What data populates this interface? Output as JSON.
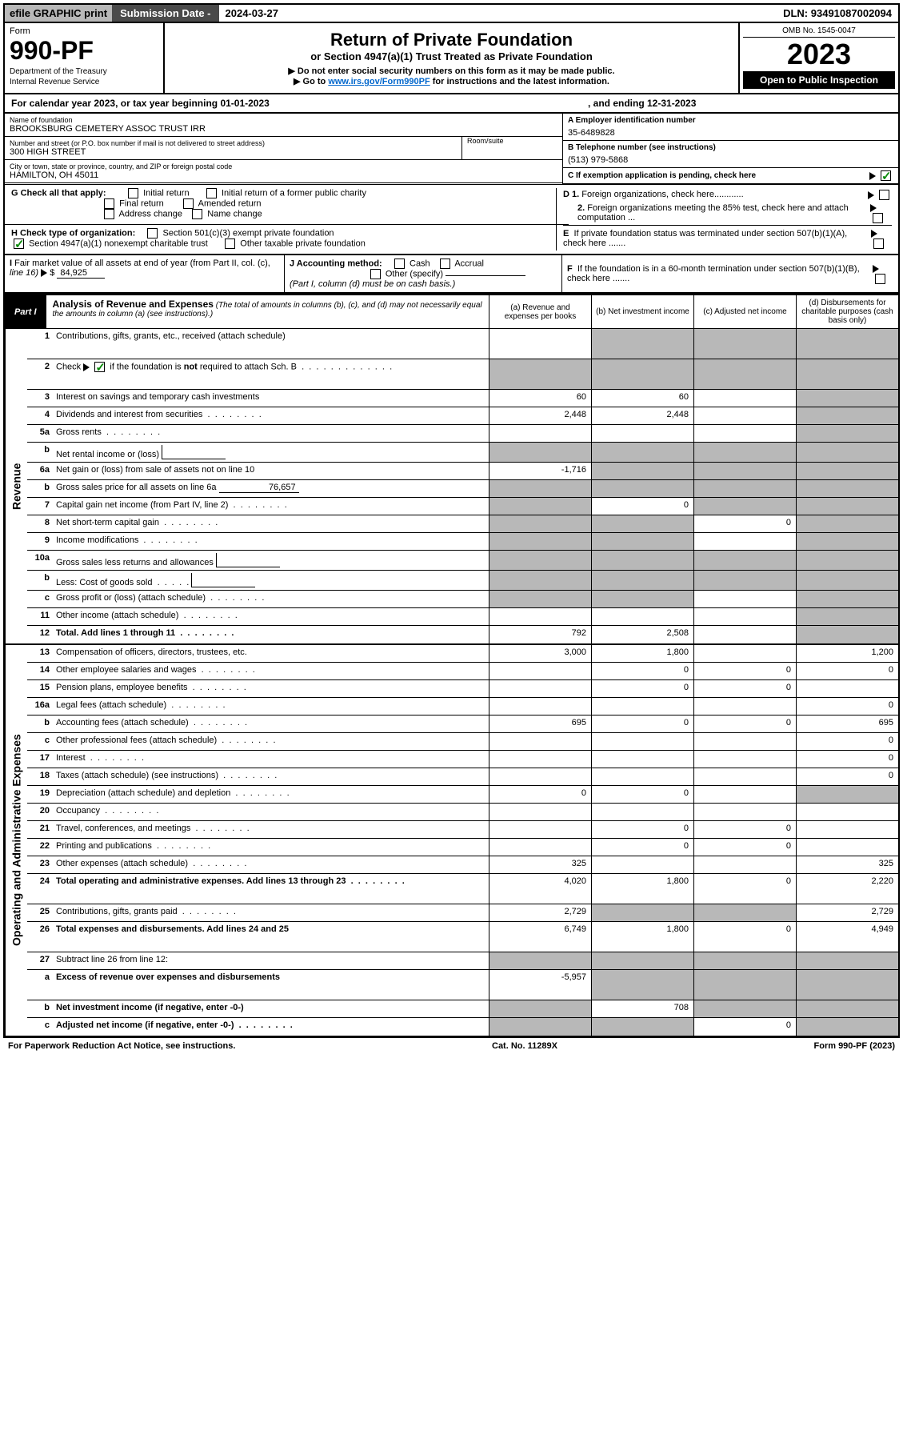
{
  "efile": {
    "left": "efile GRAPHIC print",
    "mid_label": "Submission Date -",
    "date": "2024-03-27",
    "dln_label": "DLN:",
    "dln": "93491087002094"
  },
  "header": {
    "form_label": "Form",
    "form_num": "990-PF",
    "dept1": "Department of the Treasury",
    "dept2": "Internal Revenue Service",
    "title1": "Return of Private Foundation",
    "title2": "or Section 4947(a)(1) Trust Treated as Private Foundation",
    "title3a": "▶ Do not enter social security numbers on this form as it may be made public.",
    "title3b_pre": "▶ Go to ",
    "title3b_link": "www.irs.gov/Form990PF",
    "title3b_post": " for instructions and the latest information.",
    "omb": "OMB No. 1545-0047",
    "year": "2023",
    "open": "Open to Public Inspection"
  },
  "cal": {
    "left": "For calendar year 2023, or tax year beginning 01-01-2023",
    "right": ", and ending 12-31-2023"
  },
  "info": {
    "name_label": "Name of foundation",
    "name": "BROOKSBURG CEMETERY ASSOC TRUST IRR",
    "addr_label": "Number and street (or P.O. box number if mail is not delivered to street address)",
    "addr": "300 HIGH STREET",
    "room_label": "Room/suite",
    "room": "",
    "city_label": "City or town, state or province, country, and ZIP or foreign postal code",
    "city": "HAMILTON, OH  45011",
    "a_label": "A Employer identification number",
    "a_val": "35-6489828",
    "b_label": "B Telephone number (see instructions)",
    "b_val": "(513) 979-5868",
    "c_label": "C If exemption application is pending, check here"
  },
  "checks": {
    "g_label": "G Check all that apply:",
    "g_opts": [
      "Initial return",
      "Initial return of a former public charity",
      "Final return",
      "Amended return",
      "Address change",
      "Name change"
    ],
    "h_label": "H Check type of organization:",
    "h_opt1": "Section 501(c)(3) exempt private foundation",
    "h_opt2": "Section 4947(a)(1) nonexempt charitable trust",
    "h_opt3": "Other taxable private foundation",
    "i_label_pre": "I Fair market value of all assets at end of year (from Part II, col. (c), line 16) ",
    "i_tri": "▶",
    "i_dollar": "$",
    "i_val": "84,925",
    "j_label": "J Accounting method:",
    "j_opts": [
      "Cash",
      "Accrual",
      "Other (specify)"
    ],
    "j_note": "(Part I, column (d) must be on cash basis.)",
    "d1": "D 1. Foreign organizations, check here............",
    "d2": "2. Foreign organizations meeting the 85% test, check here and attach computation ...",
    "e": "E  If private foundation status was terminated under section 507(b)(1)(A), check here .......",
    "f": "F  If the foundation is in a 60-month termination under section 507(b)(1)(B), check here .......",
    "arrow": "▶"
  },
  "part1": {
    "label": "Part I",
    "title_bold": "Analysis of Revenue and Expenses",
    "title_italic": " (The total of amounts in columns (b), (c), and (d) may not necessarily equal the amounts in column (a) (see instructions).)",
    "col_a": "(a)  Revenue and expenses per books",
    "col_b": "(b)  Net investment income",
    "col_c": "(c)  Adjusted net income",
    "col_d": "(d)  Disbursements for charitable purposes (cash basis only)"
  },
  "side_labels": {
    "revenue": "Revenue",
    "expenses": "Operating and Administrative Expenses"
  },
  "rows": [
    {
      "n": "1",
      "desc": "Contributions, gifts, grants, etc., received (attach schedule)",
      "a": "",
      "b": "shaded",
      "c": "shaded",
      "d": "shaded",
      "dh": true
    },
    {
      "n": "2",
      "desc": "Check ▶ [✓] if the foundation is not required to attach Sch. B",
      "a": "shaded",
      "b": "shaded",
      "c": "shaded",
      "d": "shaded",
      "dh": true,
      "checked": true,
      "dots": true
    },
    {
      "n": "3",
      "desc": "Interest on savings and temporary cash investments",
      "a": "60",
      "b": "60",
      "c": "",
      "d": "shaded"
    },
    {
      "n": "4",
      "desc": "Dividends and interest from securities",
      "a": "2,448",
      "b": "2,448",
      "c": "",
      "d": "shaded",
      "dots": true
    },
    {
      "n": "5a",
      "desc": "Gross rents",
      "a": "",
      "b": "",
      "c": "",
      "d": "shaded",
      "dots": true
    },
    {
      "n": "b",
      "desc": "Net rental income or (loss)",
      "a": "shaded",
      "b": "shaded",
      "c": "shaded",
      "d": "shaded",
      "box": true
    },
    {
      "n": "6a",
      "desc": "Net gain or (loss) from sale of assets not on line 10",
      "a": "-1,716",
      "b": "shaded",
      "c": "shaded",
      "d": "shaded"
    },
    {
      "n": "b",
      "desc": "Gross sales price for all assets on line 6a",
      "a": "shaded",
      "b": "shaded",
      "c": "shaded",
      "d": "shaded",
      "inline_val": "76,657"
    },
    {
      "n": "7",
      "desc": "Capital gain net income (from Part IV, line 2)",
      "a": "shaded",
      "b": "0",
      "c": "shaded",
      "d": "shaded",
      "dots": true
    },
    {
      "n": "8",
      "desc": "Net short-term capital gain",
      "a": "shaded",
      "b": "shaded",
      "c": "0",
      "d": "shaded",
      "dots": true
    },
    {
      "n": "9",
      "desc": "Income modifications",
      "a": "shaded",
      "b": "shaded",
      "c": "",
      "d": "shaded",
      "dots": true
    },
    {
      "n": "10a",
      "desc": "Gross sales less returns and allowances",
      "a": "shaded",
      "b": "shaded",
      "c": "shaded",
      "d": "shaded",
      "box": true
    },
    {
      "n": "b",
      "desc": "Less: Cost of goods sold",
      "a": "shaded",
      "b": "shaded",
      "c": "shaded",
      "d": "shaded",
      "box": true,
      "dots": true
    },
    {
      "n": "c",
      "desc": "Gross profit or (loss) (attach schedule)",
      "a": "shaded",
      "b": "shaded",
      "c": "",
      "d": "shaded",
      "dots": true
    },
    {
      "n": "11",
      "desc": "Other income (attach schedule)",
      "a": "",
      "b": "",
      "c": "",
      "d": "shaded",
      "dots": true
    },
    {
      "n": "12",
      "desc": "Total. Add lines 1 through 11",
      "a": "792",
      "b": "2,508",
      "c": "",
      "d": "shaded",
      "bold": true,
      "dots": true
    }
  ],
  "exp_rows": [
    {
      "n": "13",
      "desc": "Compensation of officers, directors, trustees, etc.",
      "a": "3,000",
      "b": "1,800",
      "c": "",
      "d": "1,200"
    },
    {
      "n": "14",
      "desc": "Other employee salaries and wages",
      "a": "",
      "b": "0",
      "c": "0",
      "d": "0",
      "dots": true
    },
    {
      "n": "15",
      "desc": "Pension plans, employee benefits",
      "a": "",
      "b": "0",
      "c": "0",
      "d": "",
      "dots": true
    },
    {
      "n": "16a",
      "desc": "Legal fees (attach schedule)",
      "a": "",
      "b": "",
      "c": "",
      "d": "0",
      "dots": true
    },
    {
      "n": "b",
      "desc": "Accounting fees (attach schedule)",
      "a": "695",
      "b": "0",
      "c": "0",
      "d": "695",
      "dots": true
    },
    {
      "n": "c",
      "desc": "Other professional fees (attach schedule)",
      "a": "",
      "b": "",
      "c": "",
      "d": "0",
      "dots": true
    },
    {
      "n": "17",
      "desc": "Interest",
      "a": "",
      "b": "",
      "c": "",
      "d": "0",
      "dots": true
    },
    {
      "n": "18",
      "desc": "Taxes (attach schedule) (see instructions)",
      "a": "",
      "b": "",
      "c": "",
      "d": "0",
      "dots": true
    },
    {
      "n": "19",
      "desc": "Depreciation (attach schedule) and depletion",
      "a": "0",
      "b": "0",
      "c": "",
      "d": "shaded",
      "dots": true
    },
    {
      "n": "20",
      "desc": "Occupancy",
      "a": "",
      "b": "",
      "c": "",
      "d": "",
      "dots": true
    },
    {
      "n": "21",
      "desc": "Travel, conferences, and meetings",
      "a": "",
      "b": "0",
      "c": "0",
      "d": "",
      "dots": true
    },
    {
      "n": "22",
      "desc": "Printing and publications",
      "a": "",
      "b": "0",
      "c": "0",
      "d": "",
      "dots": true
    },
    {
      "n": "23",
      "desc": "Other expenses (attach schedule)",
      "a": "325",
      "b": "",
      "c": "",
      "d": "325",
      "dots": true
    },
    {
      "n": "24",
      "desc": "Total operating and administrative expenses. Add lines 13 through 23",
      "a": "4,020",
      "b": "1,800",
      "c": "0",
      "d": "2,220",
      "bold": true,
      "dh": true,
      "dots": true
    },
    {
      "n": "25",
      "desc": "Contributions, gifts, grants paid",
      "a": "2,729",
      "b": "shaded",
      "c": "shaded",
      "d": "2,729",
      "dots": true
    },
    {
      "n": "26",
      "desc": "Total expenses and disbursements. Add lines 24 and 25",
      "a": "6,749",
      "b": "1,800",
      "c": "0",
      "d": "4,949",
      "bold": true,
      "dh": true
    },
    {
      "n": "27",
      "desc": "Subtract line 26 from line 12:",
      "a": "shaded",
      "b": "shaded",
      "c": "shaded",
      "d": "shaded"
    },
    {
      "n": "a",
      "desc": "Excess of revenue over expenses and disbursements",
      "a": "-5,957",
      "b": "shaded",
      "c": "shaded",
      "d": "shaded",
      "bold": true,
      "dh": true
    },
    {
      "n": "b",
      "desc": "Net investment income (if negative, enter -0-)",
      "a": "shaded",
      "b": "708",
      "c": "shaded",
      "d": "shaded",
      "bold": true
    },
    {
      "n": "c",
      "desc": "Adjusted net income (if negative, enter -0-)",
      "a": "shaded",
      "b": "shaded",
      "c": "0",
      "d": "shaded",
      "bold": true,
      "dots": true
    }
  ],
  "footer": {
    "left": "For Paperwork Reduction Act Notice, see instructions.",
    "mid": "Cat. No. 11289X",
    "right": "Form 990-PF (2023)"
  },
  "colors": {
    "shaded": "#b8b8b8",
    "link": "#0066cc",
    "check": "#0a8a0a"
  }
}
